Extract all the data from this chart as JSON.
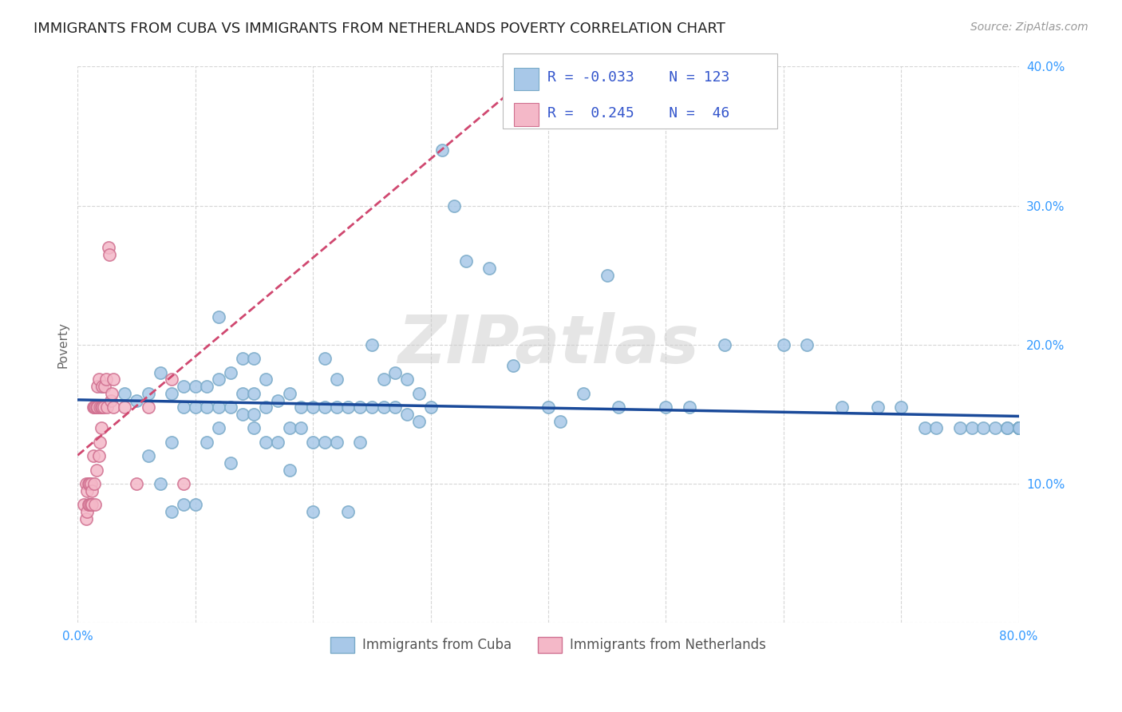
{
  "title": "IMMIGRANTS FROM CUBA VS IMMIGRANTS FROM NETHERLANDS POVERTY CORRELATION CHART",
  "source": "Source: ZipAtlas.com",
  "ylabel": "Poverty",
  "xlim": [
    0.0,
    0.8
  ],
  "ylim": [
    0.0,
    0.4
  ],
  "cuba_color": "#a8c8e8",
  "cuba_edge": "#7aaac8",
  "netherlands_color": "#f4b8c8",
  "netherlands_edge": "#d07090",
  "cuba_line_color": "#1a4a9a",
  "netherlands_line_color": "#d04870",
  "grid_color": "#cccccc",
  "background_color": "#ffffff",
  "legend_R_cuba": "R = -0.033",
  "legend_N_cuba": "N = 123",
  "legend_R_neth": "R =  0.245",
  "legend_N_neth": "N =  46",
  "watermark": "ZIPatlas",
  "title_fontsize": 13,
  "axis_label_fontsize": 11,
  "tick_fontsize": 11,
  "legend_fontsize": 13,
  "cuba_x": [
    0.02,
    0.04,
    0.05,
    0.06,
    0.06,
    0.07,
    0.07,
    0.08,
    0.08,
    0.08,
    0.09,
    0.09,
    0.09,
    0.1,
    0.1,
    0.1,
    0.11,
    0.11,
    0.11,
    0.12,
    0.12,
    0.12,
    0.12,
    0.13,
    0.13,
    0.13,
    0.14,
    0.14,
    0.14,
    0.15,
    0.15,
    0.15,
    0.15,
    0.16,
    0.16,
    0.16,
    0.17,
    0.17,
    0.18,
    0.18,
    0.18,
    0.19,
    0.19,
    0.2,
    0.2,
    0.2,
    0.21,
    0.21,
    0.21,
    0.22,
    0.22,
    0.22,
    0.23,
    0.23,
    0.24,
    0.24,
    0.25,
    0.25,
    0.26,
    0.26,
    0.27,
    0.27,
    0.28,
    0.28,
    0.29,
    0.29,
    0.3,
    0.31,
    0.32,
    0.33,
    0.35,
    0.37,
    0.4,
    0.41,
    0.43,
    0.45,
    0.46,
    0.5,
    0.52,
    0.55,
    0.6,
    0.62,
    0.65,
    0.68,
    0.7,
    0.72,
    0.73,
    0.75,
    0.76,
    0.77,
    0.78,
    0.79,
    0.79,
    0.8,
    0.8,
    0.8,
    0.8,
    0.8,
    0.8,
    0.8,
    0.8,
    0.8,
    0.8,
    0.8,
    0.8,
    0.8,
    0.8,
    0.8,
    0.8,
    0.8,
    0.8,
    0.8,
    0.8,
    0.8,
    0.8,
    0.8,
    0.8,
    0.8,
    0.8,
    0.8,
    0.8,
    0.8,
    0.8
  ],
  "cuba_y": [
    0.17,
    0.165,
    0.16,
    0.12,
    0.165,
    0.1,
    0.18,
    0.08,
    0.13,
    0.165,
    0.085,
    0.155,
    0.17,
    0.085,
    0.155,
    0.17,
    0.13,
    0.155,
    0.17,
    0.14,
    0.155,
    0.175,
    0.22,
    0.115,
    0.155,
    0.18,
    0.15,
    0.165,
    0.19,
    0.14,
    0.15,
    0.165,
    0.19,
    0.13,
    0.155,
    0.175,
    0.13,
    0.16,
    0.11,
    0.14,
    0.165,
    0.14,
    0.155,
    0.08,
    0.13,
    0.155,
    0.13,
    0.155,
    0.19,
    0.13,
    0.155,
    0.175,
    0.08,
    0.155,
    0.13,
    0.155,
    0.2,
    0.155,
    0.155,
    0.175,
    0.155,
    0.18,
    0.15,
    0.175,
    0.145,
    0.165,
    0.155,
    0.34,
    0.3,
    0.26,
    0.255,
    0.185,
    0.155,
    0.145,
    0.165,
    0.25,
    0.155,
    0.155,
    0.155,
    0.2,
    0.2,
    0.2,
    0.155,
    0.155,
    0.155,
    0.14,
    0.14,
    0.14,
    0.14,
    0.14,
    0.14,
    0.14,
    0.14,
    0.14,
    0.14,
    0.14,
    0.14,
    0.14,
    0.14,
    0.14,
    0.14,
    0.14,
    0.14,
    0.14,
    0.14,
    0.14,
    0.14,
    0.14,
    0.14,
    0.14,
    0.14,
    0.14,
    0.14,
    0.14,
    0.14,
    0.14,
    0.14,
    0.14,
    0.14,
    0.14,
    0.14,
    0.14,
    0.14
  ],
  "neth_x": [
    0.005,
    0.007,
    0.007,
    0.008,
    0.008,
    0.009,
    0.009,
    0.01,
    0.01,
    0.011,
    0.011,
    0.012,
    0.012,
    0.013,
    0.013,
    0.014,
    0.014,
    0.015,
    0.015,
    0.016,
    0.016,
    0.017,
    0.017,
    0.018,
    0.018,
    0.019,
    0.019,
    0.02,
    0.02,
    0.021,
    0.021,
    0.022,
    0.023,
    0.024,
    0.025,
    0.026,
    0.027,
    0.028,
    0.029,
    0.03,
    0.03,
    0.04,
    0.05,
    0.06,
    0.08,
    0.09
  ],
  "neth_y": [
    0.085,
    0.1,
    0.075,
    0.095,
    0.08,
    0.1,
    0.085,
    0.1,
    0.085,
    0.1,
    0.085,
    0.095,
    0.085,
    0.12,
    0.155,
    0.1,
    0.155,
    0.085,
    0.155,
    0.11,
    0.155,
    0.155,
    0.17,
    0.12,
    0.175,
    0.13,
    0.155,
    0.14,
    0.155,
    0.155,
    0.17,
    0.155,
    0.17,
    0.175,
    0.155,
    0.27,
    0.265,
    0.16,
    0.165,
    0.155,
    0.175,
    0.155,
    0.1,
    0.155,
    0.175,
    0.1
  ]
}
